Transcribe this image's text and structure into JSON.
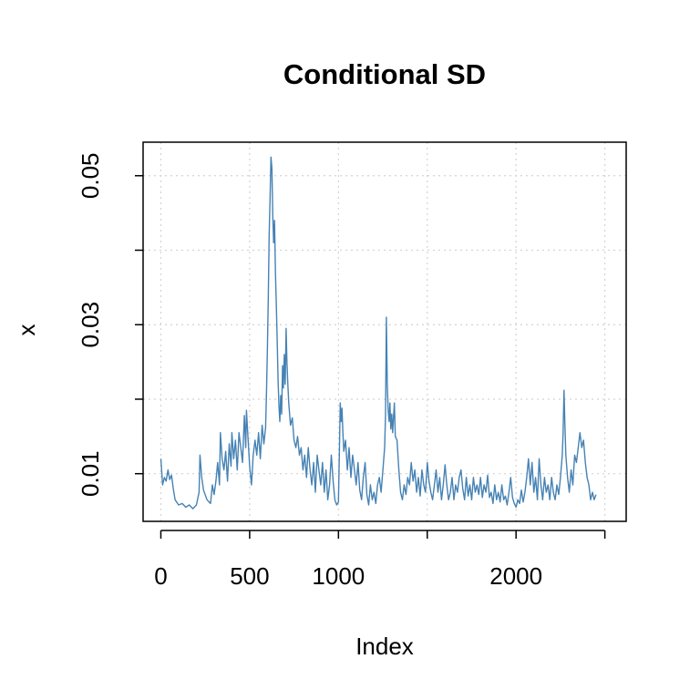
{
  "chart_data": {
    "type": "line",
    "title": "Conditional SD",
    "xlabel": "Index",
    "ylabel": "x",
    "xlim": [
      -100,
      2620
    ],
    "ylim": [
      0.0036,
      0.0545
    ],
    "x_ticks": [
      0,
      500,
      1000,
      1500,
      2000,
      2500
    ],
    "x_tick_labels": [
      "0",
      "500",
      "1000",
      "",
      "2000",
      ""
    ],
    "y_ticks": [
      0.01,
      0.02,
      0.03,
      0.04,
      0.05
    ],
    "y_tick_labels": [
      "0.01",
      "",
      "0.03",
      "",
      "0.05"
    ],
    "grid": true,
    "line_color": "#4682B4",
    "series": [
      {
        "points": [
          [
            0,
            0.012
          ],
          [
            10,
            0.0085
          ],
          [
            20,
            0.0095
          ],
          [
            30,
            0.009
          ],
          [
            40,
            0.0105
          ],
          [
            50,
            0.0092
          ],
          [
            60,
            0.0098
          ],
          [
            70,
            0.008
          ],
          [
            80,
            0.0065
          ],
          [
            100,
            0.0058
          ],
          [
            120,
            0.006
          ],
          [
            140,
            0.0055
          ],
          [
            160,
            0.0058
          ],
          [
            180,
            0.0053
          ],
          [
            200,
            0.0058
          ],
          [
            215,
            0.0075
          ],
          [
            220,
            0.0125
          ],
          [
            230,
            0.0095
          ],
          [
            240,
            0.0078
          ],
          [
            260,
            0.0065
          ],
          [
            280,
            0.006
          ],
          [
            290,
            0.0085
          ],
          [
            300,
            0.0072
          ],
          [
            310,
            0.009
          ],
          [
            320,
            0.0115
          ],
          [
            330,
            0.0085
          ],
          [
            335,
            0.0155
          ],
          [
            345,
            0.012
          ],
          [
            355,
            0.0105
          ],
          [
            365,
            0.013
          ],
          [
            375,
            0.009
          ],
          [
            385,
            0.014
          ],
          [
            395,
            0.011
          ],
          [
            400,
            0.0155
          ],
          [
            410,
            0.012
          ],
          [
            420,
            0.0145
          ],
          [
            430,
            0.0105
          ],
          [
            440,
            0.0155
          ],
          [
            450,
            0.0135
          ],
          [
            460,
            0.0115
          ],
          [
            470,
            0.0178
          ],
          [
            478,
            0.0135
          ],
          [
            482,
            0.0185
          ],
          [
            490,
            0.015
          ],
          [
            500,
            0.011
          ],
          [
            510,
            0.0085
          ],
          [
            520,
            0.0125
          ],
          [
            530,
            0.0145
          ],
          [
            540,
            0.0125
          ],
          [
            550,
            0.0155
          ],
          [
            560,
            0.012
          ],
          [
            570,
            0.0165
          ],
          [
            580,
            0.014
          ],
          [
            590,
            0.0162
          ],
          [
            595,
            0.021
          ],
          [
            600,
            0.027
          ],
          [
            605,
            0.034
          ],
          [
            610,
            0.042
          ],
          [
            615,
            0.047
          ],
          [
            620,
            0.0525
          ],
          [
            625,
            0.051
          ],
          [
            630,
            0.045
          ],
          [
            635,
            0.041
          ],
          [
            640,
            0.044
          ],
          [
            645,
            0.037
          ],
          [
            650,
            0.033
          ],
          [
            655,
            0.028
          ],
          [
            660,
            0.0225
          ],
          [
            665,
            0.019
          ],
          [
            670,
            0.017
          ],
          [
            675,
            0.0205
          ],
          [
            680,
            0.018
          ],
          [
            685,
            0.0245
          ],
          [
            690,
            0.0215
          ],
          [
            695,
            0.026
          ],
          [
            700,
            0.022
          ],
          [
            705,
            0.0295
          ],
          [
            710,
            0.025
          ],
          [
            715,
            0.022
          ],
          [
            720,
            0.0195
          ],
          [
            730,
            0.0165
          ],
          [
            740,
            0.0175
          ],
          [
            750,
            0.0145
          ],
          [
            760,
            0.0135
          ],
          [
            770,
            0.015
          ],
          [
            780,
            0.0125
          ],
          [
            790,
            0.0135
          ],
          [
            800,
            0.0105
          ],
          [
            810,
            0.0125
          ],
          [
            820,
            0.0095
          ],
          [
            830,
            0.0135
          ],
          [
            840,
            0.0105
          ],
          [
            850,
            0.0085
          ],
          [
            860,
            0.0115
          ],
          [
            870,
            0.0075
          ],
          [
            880,
            0.0125
          ],
          [
            890,
            0.0105
          ],
          [
            900,
            0.0085
          ],
          [
            910,
            0.0115
          ],
          [
            920,
            0.0075
          ],
          [
            930,
            0.0105
          ],
          [
            940,
            0.0065
          ],
          [
            950,
            0.0085
          ],
          [
            960,
            0.0125
          ],
          [
            970,
            0.009
          ],
          [
            980,
            0.0065
          ],
          [
            990,
            0.0058
          ],
          [
            1000,
            0.0062
          ],
          [
            1005,
            0.0125
          ],
          [
            1010,
            0.0195
          ],
          [
            1015,
            0.017
          ],
          [
            1020,
            0.0188
          ],
          [
            1025,
            0.0155
          ],
          [
            1030,
            0.013
          ],
          [
            1040,
            0.0145
          ],
          [
            1050,
            0.0105
          ],
          [
            1060,
            0.0135
          ],
          [
            1070,
            0.0095
          ],
          [
            1080,
            0.0125
          ],
          [
            1090,
            0.0105
          ],
          [
            1100,
            0.0085
          ],
          [
            1110,
            0.0115
          ],
          [
            1120,
            0.0078
          ],
          [
            1130,
            0.0065
          ],
          [
            1140,
            0.0095
          ],
          [
            1150,
            0.0115
          ],
          [
            1160,
            0.0072
          ],
          [
            1170,
            0.0058
          ],
          [
            1180,
            0.0085
          ],
          [
            1190,
            0.0065
          ],
          [
            1200,
            0.0075
          ],
          [
            1210,
            0.006
          ],
          [
            1220,
            0.0085
          ],
          [
            1230,
            0.0095
          ],
          [
            1240,
            0.0075
          ],
          [
            1250,
            0.0105
          ],
          [
            1260,
            0.0135
          ],
          [
            1265,
            0.018
          ],
          [
            1270,
            0.031
          ],
          [
            1275,
            0.022
          ],
          [
            1280,
            0.0185
          ],
          [
            1285,
            0.017
          ],
          [
            1290,
            0.0195
          ],
          [
            1295,
            0.016
          ],
          [
            1300,
            0.018
          ],
          [
            1305,
            0.0155
          ],
          [
            1310,
            0.0175
          ],
          [
            1315,
            0.0195
          ],
          [
            1320,
            0.015
          ],
          [
            1330,
            0.0145
          ],
          [
            1340,
            0.0105
          ],
          [
            1350,
            0.0075
          ],
          [
            1360,
            0.0065
          ],
          [
            1370,
            0.0085
          ],
          [
            1380,
            0.0072
          ],
          [
            1390,
            0.0095
          ],
          [
            1400,
            0.0085
          ],
          [
            1410,
            0.0115
          ],
          [
            1420,
            0.009
          ],
          [
            1430,
            0.0105
          ],
          [
            1440,
            0.0075
          ],
          [
            1450,
            0.0095
          ],
          [
            1460,
            0.007
          ],
          [
            1470,
            0.0105
          ],
          [
            1480,
            0.0085
          ],
          [
            1490,
            0.0075
          ],
          [
            1500,
            0.0115
          ],
          [
            1510,
            0.009
          ],
          [
            1520,
            0.0075
          ],
          [
            1530,
            0.0065
          ],
          [
            1540,
            0.0085
          ],
          [
            1550,
            0.0105
          ],
          [
            1560,
            0.0075
          ],
          [
            1570,
            0.0095
          ],
          [
            1580,
            0.0065
          ],
          [
            1590,
            0.0085
          ],
          [
            1600,
            0.0112
          ],
          [
            1610,
            0.0085
          ],
          [
            1620,
            0.0065
          ],
          [
            1630,
            0.0075
          ],
          [
            1640,
            0.0095
          ],
          [
            1650,
            0.0065
          ],
          [
            1660,
            0.0085
          ],
          [
            1670,
            0.0075
          ],
          [
            1680,
            0.0095
          ],
          [
            1690,
            0.0105
          ],
          [
            1700,
            0.008
          ],
          [
            1710,
            0.0065
          ],
          [
            1720,
            0.0095
          ],
          [
            1730,
            0.007
          ],
          [
            1740,
            0.0085
          ],
          [
            1750,
            0.0065
          ],
          [
            1760,
            0.0095
          ],
          [
            1770,
            0.0075
          ],
          [
            1780,
            0.0085
          ],
          [
            1790,
            0.0072
          ],
          [
            1800,
            0.0095
          ],
          [
            1810,
            0.0068
          ],
          [
            1820,
            0.0085
          ],
          [
            1830,
            0.0075
          ],
          [
            1840,
            0.0098
          ],
          [
            1850,
            0.0068
          ],
          [
            1860,
            0.0075
          ],
          [
            1870,
            0.006
          ],
          [
            1880,
            0.0085
          ],
          [
            1890,
            0.0065
          ],
          [
            1900,
            0.0075
          ],
          [
            1910,
            0.0062
          ],
          [
            1920,
            0.0085
          ],
          [
            1930,
            0.0065
          ],
          [
            1940,
            0.007
          ],
          [
            1950,
            0.0058
          ],
          [
            1960,
            0.0075
          ],
          [
            1970,
            0.0095
          ],
          [
            1980,
            0.0068
          ],
          [
            1990,
            0.006
          ],
          [
            2000,
            0.0055
          ],
          [
            2010,
            0.0065
          ],
          [
            2020,
            0.006
          ],
          [
            2030,
            0.0078
          ],
          [
            2040,
            0.0062
          ],
          [
            2050,
            0.0075
          ],
          [
            2060,
            0.0095
          ],
          [
            2070,
            0.012
          ],
          [
            2080,
            0.0085
          ],
          [
            2090,
            0.0115
          ],
          [
            2100,
            0.0075
          ],
          [
            2110,
            0.0095
          ],
          [
            2120,
            0.0065
          ],
          [
            2130,
            0.012
          ],
          [
            2140,
            0.0085
          ],
          [
            2150,
            0.0065
          ],
          [
            2160,
            0.0095
          ],
          [
            2170,
            0.0075
          ],
          [
            2180,
            0.0085
          ],
          [
            2190,
            0.0065
          ],
          [
            2200,
            0.0095
          ],
          [
            2210,
            0.0075
          ],
          [
            2220,
            0.0065
          ],
          [
            2230,
            0.0085
          ],
          [
            2240,
            0.0072
          ],
          [
            2250,
            0.0095
          ],
          [
            2260,
            0.0125
          ],
          [
            2265,
            0.0155
          ],
          [
            2270,
            0.0212
          ],
          [
            2275,
            0.0165
          ],
          [
            2280,
            0.0125
          ],
          [
            2290,
            0.0095
          ],
          [
            2300,
            0.0075
          ],
          [
            2310,
            0.0105
          ],
          [
            2320,
            0.0085
          ],
          [
            2330,
            0.0125
          ],
          [
            2340,
            0.0115
          ],
          [
            2350,
            0.0135
          ],
          [
            2360,
            0.0155
          ],
          [
            2370,
            0.0135
          ],
          [
            2380,
            0.0145
          ],
          [
            2390,
            0.0115
          ],
          [
            2400,
            0.0095
          ],
          [
            2410,
            0.0085
          ],
          [
            2420,
            0.0065
          ],
          [
            2430,
            0.0075
          ],
          [
            2440,
            0.0065
          ],
          [
            2450,
            0.0072
          ]
        ]
      }
    ]
  }
}
